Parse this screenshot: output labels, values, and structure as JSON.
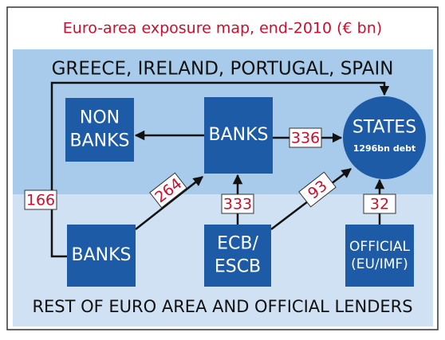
{
  "title": "Euro-area exposure map, end-2010 (€ bn)",
  "regions": {
    "top": "GREECE, IRELAND, PORTUGAL, SPAIN",
    "bottom": "REST OF EURO AREA AND OFFICIAL LENDERS"
  },
  "nodes": [
    {
      "lines": [
        "NON",
        "BANKS"
      ]
    },
    {
      "lines": [
        "BANKS"
      ]
    },
    {
      "lines": [
        "STATES"
      ],
      "note": "1296bn debt"
    },
    {
      "lines": [
        "BANKS"
      ]
    },
    {
      "lines": [
        "ECB/",
        "ESCB"
      ]
    },
    {
      "lines": [
        "OFFICIAL",
        "(EU/IMF)"
      ]
    }
  ],
  "flows": [
    {
      "value": 166
    },
    {
      "value": 264
    },
    {
      "value": 333
    },
    {
      "value": 93
    },
    {
      "value": 336
    },
    {
      "value": 32
    }
  ]
}
